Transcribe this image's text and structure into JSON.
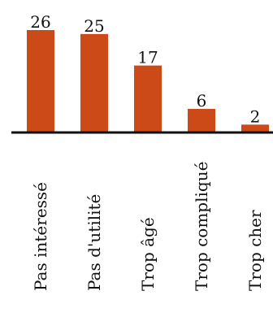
{
  "chart_data": {
    "type": "bar",
    "categories": [
      "Pas intéressé",
      "Pas d'utilité",
      "Trop âgé",
      "Trop compliqué",
      "Trop cher"
    ],
    "values": [
      26,
      25,
      17,
      6,
      2
    ],
    "title": "",
    "xlabel": "",
    "ylabel": "",
    "ylim": [
      0,
      26
    ],
    "grid": false,
    "legend": "none",
    "colors": {
      "bar": "#cc4a17",
      "axis": "#111111",
      "text": "#111111"
    }
  }
}
